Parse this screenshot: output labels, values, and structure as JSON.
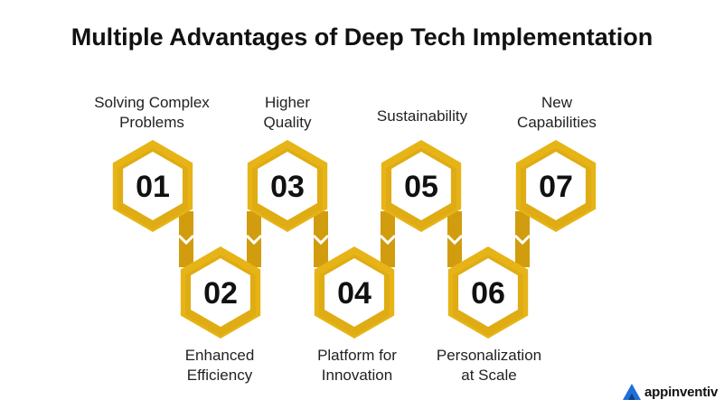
{
  "title": "Multiple Advantages of Deep Tech Implementation",
  "items": [
    {
      "num": "01",
      "label_line1": "Solving Complex",
      "label_line2": "Problems"
    },
    {
      "num": "02",
      "label_line1": "Enhanced",
      "label_line2": "Efficiency"
    },
    {
      "num": "03",
      "label_line1": "Higher",
      "label_line2": "Quality"
    },
    {
      "num": "04",
      "label_line1": "Platform for",
      "label_line2": "Innovation"
    },
    {
      "num": "05",
      "label_line1": "Sustainability",
      "label_line2": ""
    },
    {
      "num": "06",
      "label_line1": "Personalization",
      "label_line2": "at Scale"
    },
    {
      "num": "07",
      "label_line1": "New",
      "label_line2": "Capabilities"
    }
  ],
  "colors": {
    "gold": "#E6B417",
    "gold_dark": "#D19D0E",
    "inner": "#FFFFFF",
    "number": "#111111",
    "brand_icon": "#1E6FD9"
  },
  "brand": {
    "name": "appinventiv",
    "icon": "appinventiv-logo-icon"
  }
}
